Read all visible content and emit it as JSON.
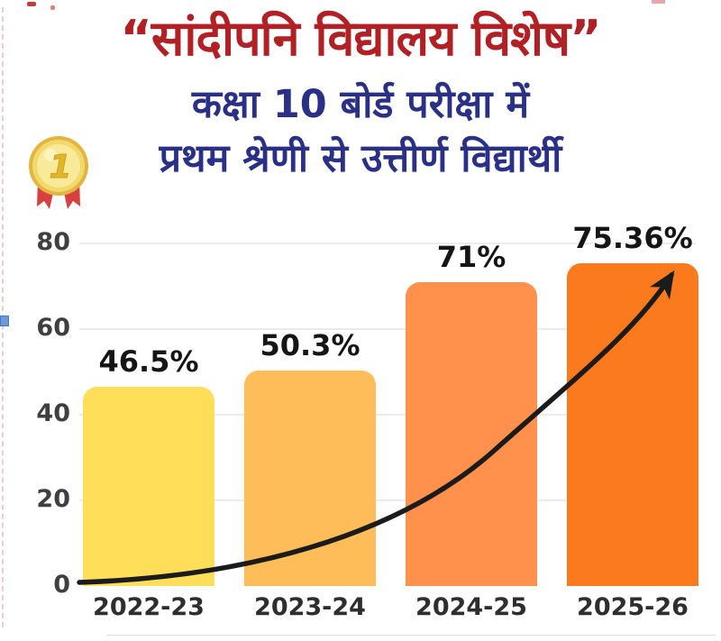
{
  "title": {
    "line1": "“सांदीपनि विद्यालय विशेष”",
    "line2": "कक्षा 10 बोर्ड परीक्षा में",
    "line3": "प्रथम श्रेणी से उत्तीर्ण विद्यार्थी"
  },
  "medal": {
    "icon": "gold-medal-first-place",
    "number": "1"
  },
  "colors": {
    "title_red": "#b02025",
    "subtitle_navy": "#2b3087",
    "bar_colors": [
      "#ffde59",
      "#ffbd59",
      "#ff914d",
      "#fb7a1e"
    ],
    "gridline": "#ececec",
    "arrow_black": "#1b1b1b",
    "axis_text": "#3f3f3f"
  },
  "chart_data": {
    "type": "bar",
    "categories": [
      "2022-23",
      "2023-24",
      "2024-25",
      "2025-26"
    ],
    "values": [
      46.5,
      50.3,
      71,
      75.36
    ],
    "data_labels": [
      "46.5%",
      "50.3%",
      "71%",
      "75.36%"
    ],
    "y_ticks": [
      0,
      20,
      40,
      60,
      80
    ],
    "ylim": [
      0,
      80
    ],
    "xlabel": "",
    "ylabel": "",
    "grid": true,
    "legend": false,
    "annotation": "black exponential growth arrow from 0 at 2022-23 to top of 2025-26 bar"
  }
}
